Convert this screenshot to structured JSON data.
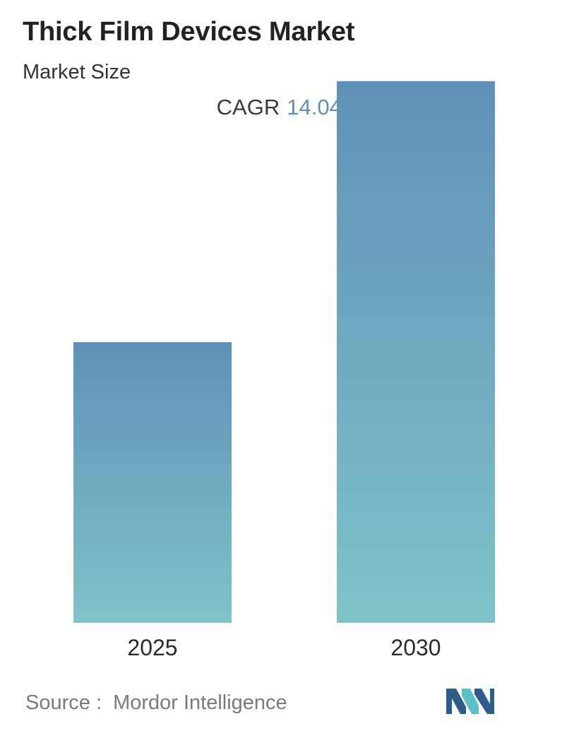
{
  "header": {
    "title": "Thick Film Devices Market",
    "subtitle": "Market Size",
    "cagr_label": "CAGR",
    "cagr_value": "14.04%"
  },
  "footer": {
    "source_label": "Source :",
    "source_name": "Mordor Intelligence",
    "logo_icon": "mordor-intelligence-logo-icon"
  },
  "colors": {
    "bar_top": "#5f91b8",
    "bar_bottom": "#7fc3c9",
    "accent": "#5f8fba",
    "logo_dark": "#2e5d8c",
    "logo_light": "#5cc0c8"
  },
  "chart_data": {
    "type": "bar",
    "categories": [
      "2025",
      "2030"
    ],
    "values": [
      1,
      1.93
    ],
    "title": "",
    "xlabel": "",
    "ylabel": "",
    "ylim": [
      0,
      2
    ],
    "grid": false,
    "legend": "none"
  }
}
